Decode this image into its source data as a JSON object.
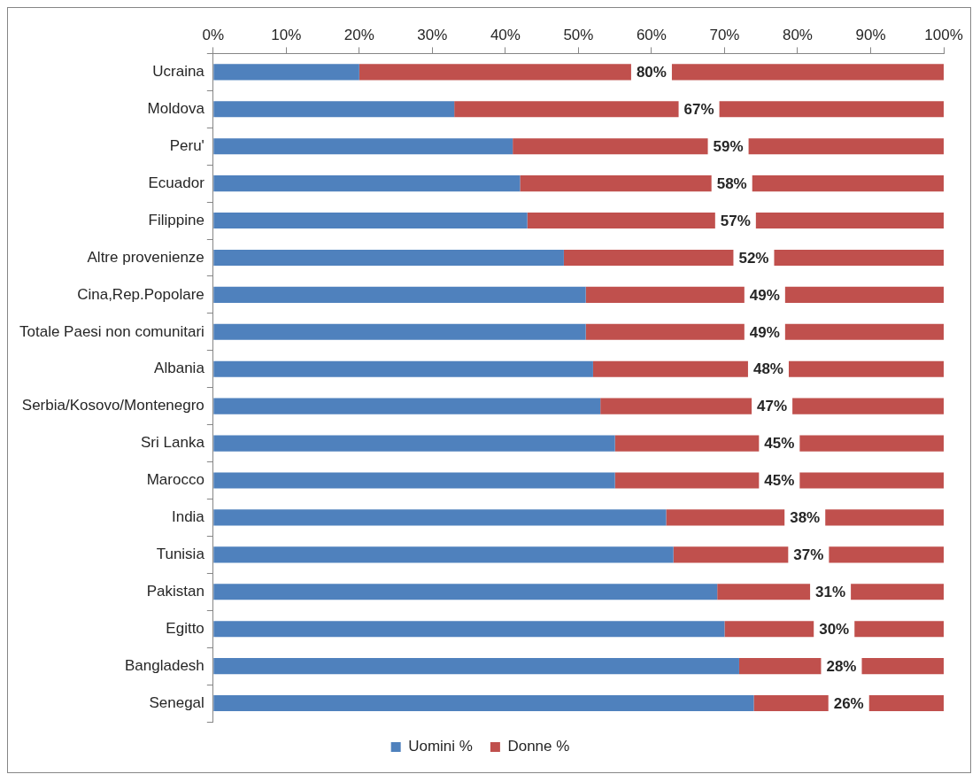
{
  "chart_data": {
    "type": "bar",
    "orientation": "horizontal",
    "stacked": true,
    "categories": [
      "Ucraina",
      "Moldova",
      "Peru'",
      "Ecuador",
      "Filippine",
      "Altre provenienze",
      "Cina,Rep.Popolare",
      "Totale Paesi non comunitari",
      "Albania",
      "Serbia/Kosovo/Montenegro",
      "Sri Lanka",
      "Marocco",
      "India",
      "Tunisia",
      "Pakistan",
      "Egitto",
      "Bangladesh",
      "Senegal"
    ],
    "series": [
      {
        "name": "Uomini %",
        "color": "#4f81bd",
        "values": [
          20,
          33,
          41,
          42,
          43,
          48,
          51,
          51,
          52,
          53,
          55,
          55,
          62,
          63,
          69,
          70,
          72,
          74
        ]
      },
      {
        "name": "Donne %",
        "color": "#c0504d",
        "values": [
          80,
          67,
          59,
          58,
          57,
          52,
          49,
          49,
          48,
          47,
          45,
          45,
          38,
          37,
          31,
          30,
          28,
          26
        ],
        "value_labels": [
          "80%",
          "67%",
          "59%",
          "58%",
          "57%",
          "52%",
          "49%",
          "49%",
          "48%",
          "47%",
          "45%",
          "45%",
          "38%",
          "37%",
          "31%",
          "30%",
          "28%",
          "26%"
        ]
      }
    ],
    "xlim": [
      0,
      100
    ],
    "xticks": [
      {
        "value": 0,
        "label": "0%"
      },
      {
        "value": 10,
        "label": "10%"
      },
      {
        "value": 20,
        "label": "20%"
      },
      {
        "value": 30,
        "label": "30%"
      },
      {
        "value": 40,
        "label": "40%"
      },
      {
        "value": 50,
        "label": "50%"
      },
      {
        "value": 60,
        "label": "60%"
      },
      {
        "value": 70,
        "label": "70%"
      },
      {
        "value": 80,
        "label": "80%"
      },
      {
        "value": 90,
        "label": "90%"
      },
      {
        "value": 100,
        "label": "100%"
      }
    ],
    "grid": false,
    "legend": "bottom"
  }
}
